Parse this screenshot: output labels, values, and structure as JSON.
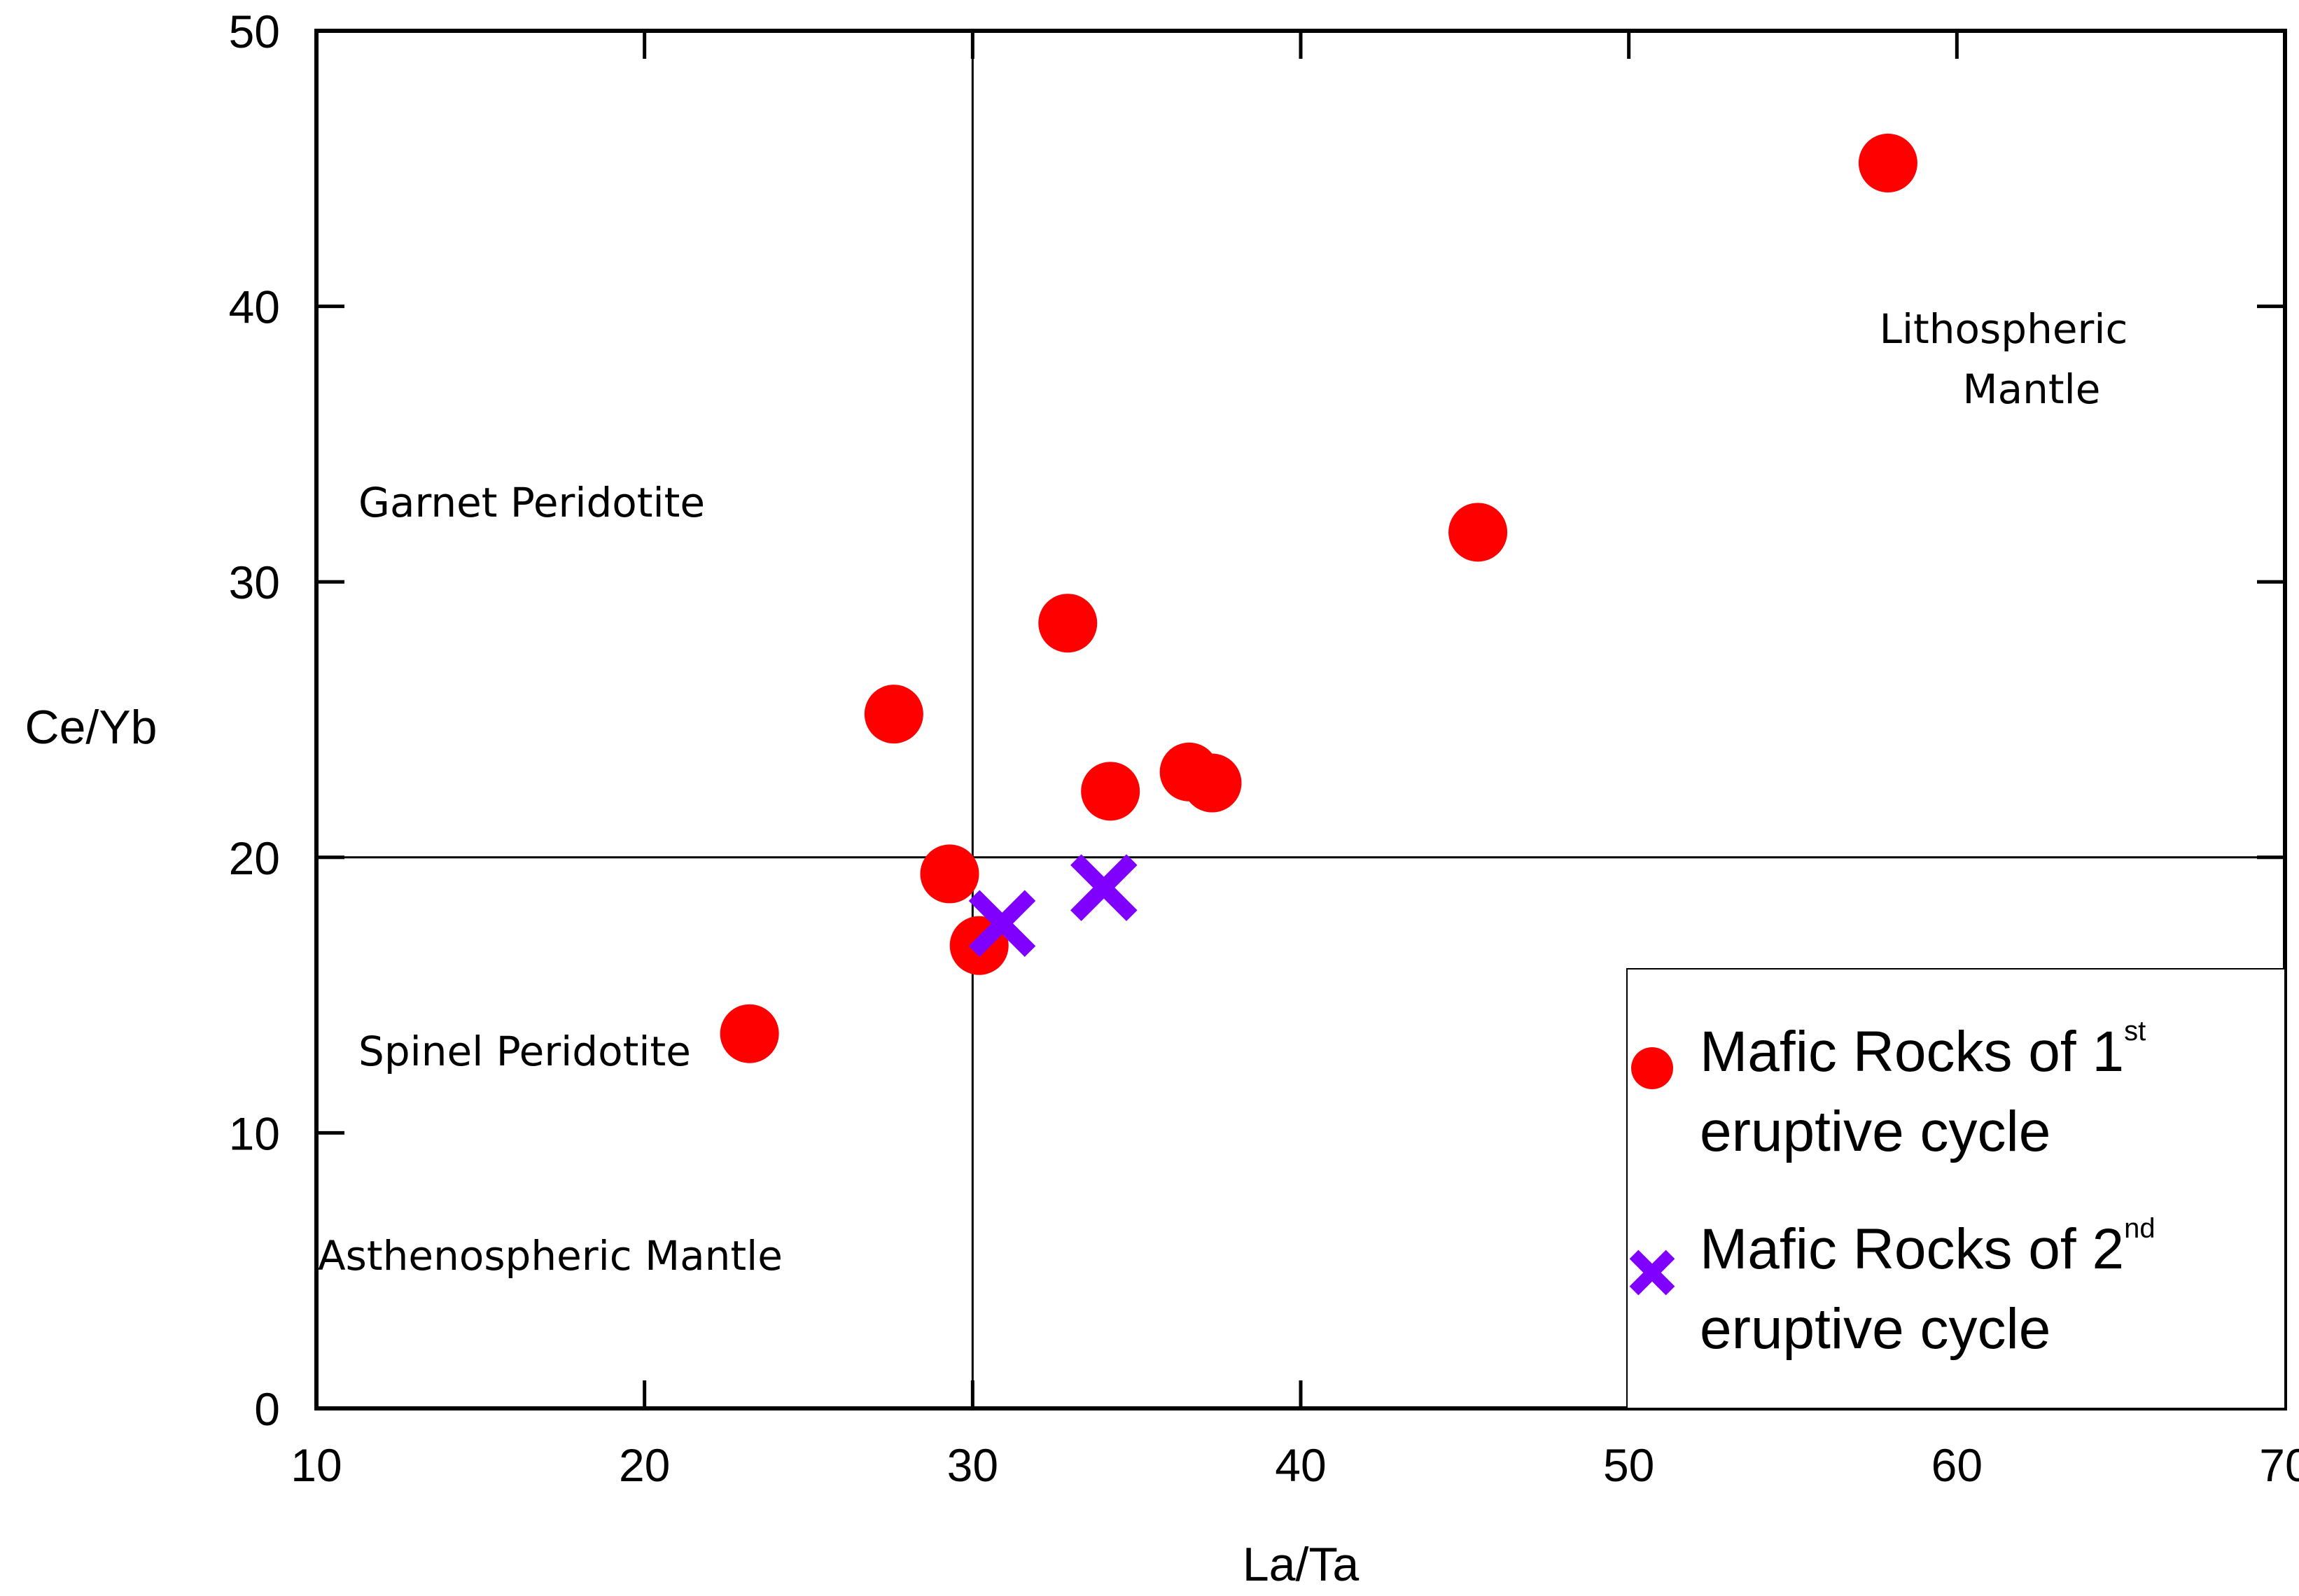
{
  "chart_data": {
    "type": "scatter",
    "title": "",
    "xlabel": "La/Ta",
    "ylabel": "Ce/Yb",
    "xlim": [
      10,
      70
    ],
    "ylim": [
      0,
      50
    ],
    "xticks": [
      10,
      20,
      30,
      40,
      50,
      60,
      70
    ],
    "yticks": [
      0,
      10,
      20,
      30,
      40,
      50
    ],
    "grid": false,
    "divider_lines": {
      "x": 30,
      "y": 20
    },
    "series": [
      {
        "name": "Mafic Rocks of 1st eruptive cycle",
        "marker": "circle",
        "color": "#ff0000",
        "points": [
          {
            "x": 23.2,
            "y": 13.6
          },
          {
            "x": 27.6,
            "y": 25.2
          },
          {
            "x": 29.3,
            "y": 19.4
          },
          {
            "x": 30.2,
            "y": 16.8
          },
          {
            "x": 32.9,
            "y": 28.5
          },
          {
            "x": 34.2,
            "y": 22.4
          },
          {
            "x": 36.6,
            "y": 23.1
          },
          {
            "x": 37.3,
            "y": 22.7
          },
          {
            "x": 45.4,
            "y": 31.8
          },
          {
            "x": 57.9,
            "y": 45.2
          }
        ]
      },
      {
        "name": "Mafic Rocks of 2nd eruptive cycle",
        "marker": "x",
        "color": "#7f00ff",
        "points": [
          {
            "x": 30.9,
            "y": 17.6
          },
          {
            "x": 34.0,
            "y": 18.9
          }
        ]
      }
    ],
    "annotations": [
      {
        "id": "garnet",
        "lines": [
          "Garnet Peridotite"
        ]
      },
      {
        "id": "spinel",
        "lines": [
          "Spinel Peridotite"
        ]
      },
      {
        "id": "astheno",
        "lines": [
          "Asthenospheric Mantle"
        ]
      },
      {
        "id": "litho",
        "lines": [
          "Lithospheric",
          "Mantle"
        ]
      }
    ],
    "legend": {
      "placement": "bottom-right",
      "entries": [
        {
          "marker": "circle",
          "color": "#ff0000",
          "line1": "Mafic Rocks of 1",
          "sup": "st",
          "line2": "eruptive cycle"
        },
        {
          "marker": "x",
          "color": "#7f00ff",
          "line1": "Mafic Rocks of 2",
          "sup": "nd",
          "line2": "eruptive cycle"
        }
      ]
    }
  }
}
